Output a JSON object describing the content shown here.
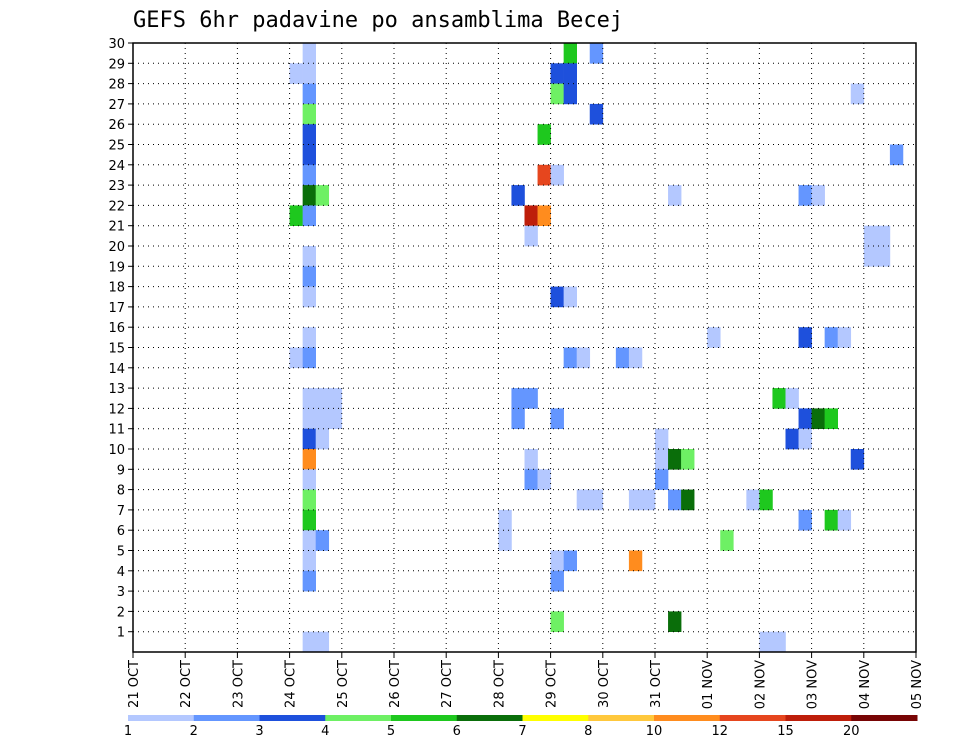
{
  "chart_data": {
    "type": "heatmap",
    "title": "GEFS 6hr padavine po ansamblima Becej",
    "xlabel": "",
    "ylabel": "",
    "x_tick_labels": [
      "21 OCT",
      "22 OCT",
      "23 OCT",
      "24 OCT",
      "25 OCT",
      "26 OCT",
      "27 OCT",
      "28 OCT",
      "29 OCT",
      "30 OCT",
      "31 OCT",
      "01 NOV",
      "02 NOV",
      "03 NOV",
      "04 NOV",
      "05 NOV"
    ],
    "y_tick_labels": [
      "1",
      "2",
      "3",
      "4",
      "5",
      "6",
      "7",
      "8",
      "9",
      "10",
      "11",
      "12",
      "13",
      "14",
      "15",
      "16",
      "17",
      "18",
      "19",
      "20",
      "21",
      "22",
      "23",
      "24",
      "25",
      "26",
      "27",
      "28",
      "29",
      "30"
    ],
    "ylim": [
      0,
      30
    ],
    "grid": true,
    "colorbar": {
      "thresholds": [
        "1",
        "2",
        "3",
        "4",
        "5",
        "6",
        "7",
        "8",
        "10",
        "12",
        "15",
        "20"
      ],
      "colors": [
        "#b4c8ff",
        "#6496ff",
        "#1e50dc",
        "#6ef064",
        "#1ec81e",
        "#0a6e0a",
        "#ffff00",
        "#ffc83c",
        "#ff8c1e",
        "#e6461e",
        "#be1e0a",
        "#780505"
      ]
    },
    "cells": [
      {
        "member": 30,
        "step": 13,
        "level": 1
      },
      {
        "member": 29,
        "step": 13,
        "level": 1
      },
      {
        "member": 28,
        "step": 12,
        "level": 1
      },
      {
        "member": 28,
        "step": 13,
        "level": 1
      },
      {
        "member": 27,
        "step": 13,
        "level": 2
      },
      {
        "member": 26,
        "step": 13,
        "level": 4
      },
      {
        "member": 25,
        "step": 13,
        "level": 3
      },
      {
        "member": 24,
        "step": 13,
        "level": 3
      },
      {
        "member": 23,
        "step": 13,
        "level": 2
      },
      {
        "member": 22,
        "step": 13,
        "level": 6
      },
      {
        "member": 22,
        "step": 14,
        "level": 4
      },
      {
        "member": 21,
        "step": 12,
        "level": 5
      },
      {
        "member": 21,
        "step": 13,
        "level": 2
      },
      {
        "member": 19,
        "step": 13,
        "level": 1
      },
      {
        "member": 18,
        "step": 13,
        "level": 2
      },
      {
        "member": 17,
        "step": 13,
        "level": 1
      },
      {
        "member": 15,
        "step": 13,
        "level": 1
      },
      {
        "member": 14,
        "step": 12,
        "level": 1
      },
      {
        "member": 14,
        "step": 13,
        "level": 2
      },
      {
        "member": 12,
        "step": 13,
        "level": 1
      },
      {
        "member": 12,
        "step": 14,
        "level": 1
      },
      {
        "member": 12,
        "step": 15,
        "level": 1
      },
      {
        "member": 11,
        "step": 13,
        "level": 1
      },
      {
        "member": 11,
        "step": 14,
        "level": 1
      },
      {
        "member": 11,
        "step": 15,
        "level": 1
      },
      {
        "member": 10,
        "step": 13,
        "level": 3
      },
      {
        "member": 10,
        "step": 14,
        "level": 1
      },
      {
        "member": 9,
        "step": 13,
        "level": 9
      },
      {
        "member": 8,
        "step": 13,
        "level": 1
      },
      {
        "member": 7,
        "step": 13,
        "level": 4
      },
      {
        "member": 6,
        "step": 13,
        "level": 5
      },
      {
        "member": 5,
        "step": 13,
        "level": 1
      },
      {
        "member": 5,
        "step": 14,
        "level": 2
      },
      {
        "member": 4,
        "step": 13,
        "level": 1
      },
      {
        "member": 3,
        "step": 13,
        "level": 2
      },
      {
        "member": 0,
        "step": 13,
        "level": 1
      },
      {
        "member": 0,
        "step": 14,
        "level": 1
      },
      {
        "member": 30,
        "step": 30,
        "level": 5
      },
      {
        "member": 30,
        "step": 31,
        "level": 1
      },
      {
        "member": 30,
        "step": 32,
        "level": 1
      },
      {
        "member": 29,
        "step": 33,
        "level": 5
      },
      {
        "member": 29,
        "step": 35,
        "level": 2
      },
      {
        "member": 28,
        "step": 32,
        "level": 3
      },
      {
        "member": 28,
        "step": 33,
        "level": 3
      },
      {
        "member": 27,
        "step": 32,
        "level": 4
      },
      {
        "member": 27,
        "step": 33,
        "level": 3
      },
      {
        "member": 26,
        "step": 35,
        "level": 3
      },
      {
        "member": 25,
        "step": 31,
        "level": 5
      },
      {
        "member": 23,
        "step": 31,
        "level": 10
      },
      {
        "member": 23,
        "step": 32,
        "level": 1
      },
      {
        "member": 22,
        "step": 29,
        "level": 3
      },
      {
        "member": 21,
        "step": 30,
        "level": 11
      },
      {
        "member": 21,
        "step": 31,
        "level": 9
      },
      {
        "member": 20,
        "step": 30,
        "level": 1
      },
      {
        "member": 17,
        "step": 32,
        "level": 3
      },
      {
        "member": 17,
        "step": 33,
        "level": 1
      },
      {
        "member": 14,
        "step": 33,
        "level": 2
      },
      {
        "member": 14,
        "step": 34,
        "level": 1
      },
      {
        "member": 12,
        "step": 29,
        "level": 2
      },
      {
        "member": 12,
        "step": 30,
        "level": 2
      },
      {
        "member": 11,
        "step": 29,
        "level": 2
      },
      {
        "member": 11,
        "step": 32,
        "level": 2
      },
      {
        "member": 9,
        "step": 30,
        "level": 1
      },
      {
        "member": 8,
        "step": 30,
        "level": 2
      },
      {
        "member": 8,
        "step": 31,
        "level": 1
      },
      {
        "member": 7,
        "step": 34,
        "level": 1
      },
      {
        "member": 7,
        "step": 35,
        "level": 1
      },
      {
        "member": 6,
        "step": 28,
        "level": 1
      },
      {
        "member": 5,
        "step": 28,
        "level": 1
      },
      {
        "member": 4,
        "step": 32,
        "level": 1
      },
      {
        "member": 4,
        "step": 33,
        "level": 2
      },
      {
        "member": 3,
        "step": 32,
        "level": 2
      },
      {
        "member": 1,
        "step": 32,
        "level": 4
      },
      {
        "member": 4,
        "step": 38,
        "level": 9
      },
      {
        "member": 1,
        "step": 41,
        "level": 6
      },
      {
        "member": 22,
        "step": 41,
        "level": 1
      },
      {
        "member": 15,
        "step": 44,
        "level": 1
      },
      {
        "member": 14,
        "step": 37,
        "level": 2
      },
      {
        "member": 14,
        "step": 38,
        "level": 1
      },
      {
        "member": 13,
        "step": 0,
        "level": 0
      },
      {
        "member": 10,
        "step": 40,
        "level": 1
      },
      {
        "member": 9,
        "step": 40,
        "level": 1
      },
      {
        "member": 9,
        "step": 41,
        "level": 6
      },
      {
        "member": 9,
        "step": 42,
        "level": 4
      },
      {
        "member": 8,
        "step": 40,
        "level": 2
      },
      {
        "member": 7,
        "step": 38,
        "level": 1
      },
      {
        "member": 7,
        "step": 39,
        "level": 1
      },
      {
        "member": 7,
        "step": 41,
        "level": 2
      },
      {
        "member": 7,
        "step": 42,
        "level": 6
      },
      {
        "member": 5,
        "step": 45,
        "level": 4
      },
      {
        "member": 7,
        "step": 47,
        "level": 1
      },
      {
        "member": 7,
        "step": 48,
        "level": 5
      },
      {
        "member": 0,
        "step": 48,
        "level": 1
      },
      {
        "member": 0,
        "step": 49,
        "level": 1
      },
      {
        "member": 30,
        "step": 50,
        "level": 1
      },
      {
        "member": 27,
        "step": 55,
        "level": 1
      },
      {
        "member": 24,
        "step": 58,
        "level": 2
      },
      {
        "member": 22,
        "step": 51,
        "level": 2
      },
      {
        "member": 22,
        "step": 52,
        "level": 1
      },
      {
        "member": 20,
        "step": 56,
        "level": 1
      },
      {
        "member": 20,
        "step": 57,
        "level": 1
      },
      {
        "member": 19,
        "step": 56,
        "level": 1
      },
      {
        "member": 19,
        "step": 57,
        "level": 1
      },
      {
        "member": 15,
        "step": 51,
        "level": 3
      },
      {
        "member": 15,
        "step": 53,
        "level": 2
      },
      {
        "member": 15,
        "step": 54,
        "level": 1
      },
      {
        "member": 12,
        "step": 49,
        "level": 5
      },
      {
        "member": 12,
        "step": 50,
        "level": 1
      },
      {
        "member": 11,
        "step": 51,
        "level": 3
      },
      {
        "member": 11,
        "step": 52,
        "level": 6
      },
      {
        "member": 11,
        "step": 53,
        "level": 5
      },
      {
        "member": 10,
        "step": 50,
        "level": 3
      },
      {
        "member": 10,
        "step": 51,
        "level": 1
      },
      {
        "member": 9,
        "step": 55,
        "level": 3
      },
      {
        "member": 8,
        "step": 60,
        "level": 1
      },
      {
        "member": 6,
        "step": 51,
        "level": 2
      },
      {
        "member": 6,
        "step": 53,
        "level": 5
      },
      {
        "member": 6,
        "step": 54,
        "level": 1
      },
      {
        "member": 29,
        "step": 66,
        "level": 3
      },
      {
        "member": 29,
        "step": 67,
        "level": 1
      },
      {
        "member": 24,
        "step": 69,
        "level": 11
      },
      {
        "member": 22,
        "step": 72,
        "level": 3
      },
      {
        "member": 22,
        "step": 74,
        "level": 2
      },
      {
        "member": 22,
        "step": 75,
        "level": 3
      },
      {
        "member": 22,
        "step": 76,
        "level": 5
      },
      {
        "member": 22,
        "step": 77,
        "level": 11
      },
      {
        "member": 22,
        "step": 78,
        "level": 2
      },
      {
        "member": 22,
        "step": 80,
        "level": 1
      },
      {
        "member": 18,
        "step": 66,
        "level": 1
      },
      {
        "member": 18,
        "step": 67,
        "level": 1
      },
      {
        "member": 17,
        "step": 66,
        "level": 1
      },
      {
        "member": 17,
        "step": 67,
        "level": 1
      },
      {
        "member": 13,
        "step": 79,
        "level": 6
      },
      {
        "member": 13,
        "step": 80,
        "level": 1
      },
      {
        "member": 12,
        "step": 72,
        "level": 1
      },
      {
        "member": 12,
        "step": 73,
        "level": 4
      },
      {
        "member": 2,
        "step": 67,
        "level": 1
      },
      {
        "member": 30,
        "step": 78,
        "level": 1
      },
      {
        "member": 30,
        "step": 82,
        "level": 1
      },
      {
        "member": 30,
        "step": 83,
        "level": 4
      },
      {
        "member": 30,
        "step": 84,
        "level": 7
      },
      {
        "member": 30,
        "step": 85,
        "level": 4
      },
      {
        "member": 30,
        "step": 86,
        "level": 3
      },
      {
        "member": 29,
        "step": 82,
        "level": 1
      },
      {
        "member": 28,
        "step": 82,
        "level": 4
      },
      {
        "member": 28,
        "step": 83,
        "level": 1
      },
      {
        "member": 28,
        "step": 86,
        "level": 1
      },
      {
        "member": 27,
        "step": 83,
        "level": 1
      },
      {
        "member": 27,
        "step": 84,
        "level": 3
      },
      {
        "member": 25,
        "step": 80,
        "level": 1
      },
      {
        "member": 25,
        "step": 83,
        "level": 1
      },
      {
        "member": 25,
        "step": 84,
        "level": 3
      },
      {
        "member": 25,
        "step": 85,
        "level": 1
      },
      {
        "member": 13,
        "step": 82,
        "level": 7
      },
      {
        "member": 13,
        "step": 83,
        "level": 3
      },
      {
        "member": 9,
        "step": 85,
        "level": 4
      },
      {
        "member": 9,
        "step": 86,
        "level": 6
      },
      {
        "member": 8,
        "step": 80,
        "level": 3
      },
      {
        "member": 8,
        "step": 85,
        "level": 1
      },
      {
        "member": 5,
        "step": 80,
        "level": 1
      },
      {
        "member": 5,
        "step": 81,
        "level": 11
      },
      {
        "member": 5,
        "step": 85,
        "level": 3
      },
      {
        "member": 0,
        "step": 86,
        "level": 5
      }
    ]
  }
}
